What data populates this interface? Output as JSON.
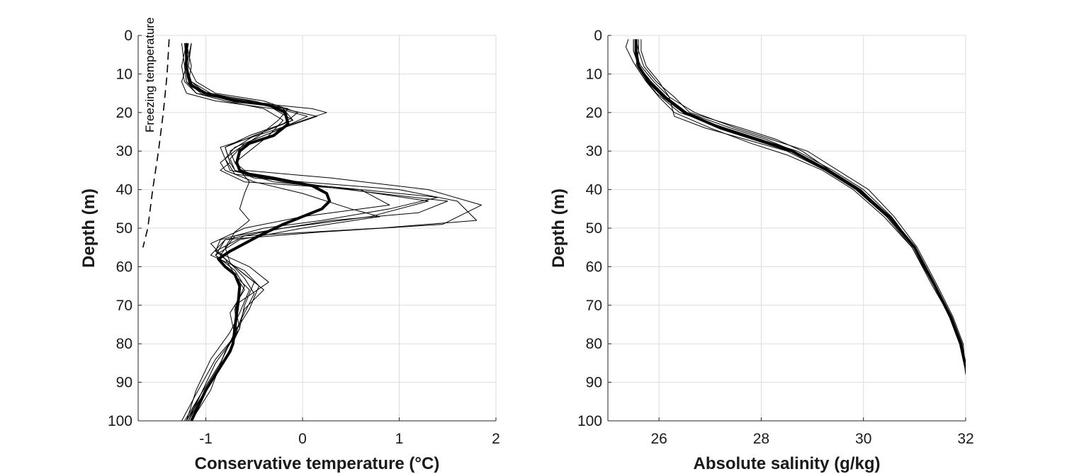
{
  "chart_data": [
    {
      "type": "line",
      "xlabel": "Conservative temperature (°C)",
      "ylabel": "Depth (m)",
      "xlim": [
        -1.7,
        2
      ],
      "ylim": [
        100,
        0
      ],
      "y_reversed": true,
      "xticks": [
        "-1",
        "0",
        "1",
        "2"
      ],
      "yticks": [
        "0",
        "10",
        "20",
        "30",
        "40",
        "50",
        "60",
        "70",
        "80",
        "90",
        "100"
      ],
      "grid": true,
      "annotation": "Freezing temperature",
      "colors": {
        "lines": "#000000",
        "grid": "#dcdcdc",
        "axes": "#262626"
      },
      "freezing_line": {
        "style": "dashed",
        "x": [
          -1.38,
          -1.4,
          -1.44,
          -1.49,
          -1.55,
          -1.6,
          -1.65
        ],
        "y": [
          1,
          10,
          20,
          30,
          40,
          50,
          55
        ]
      },
      "mean": {
        "x": [
          -1.2,
          -1.2,
          -1.18,
          -1.15,
          -1.0,
          -0.7,
          -0.35,
          -0.18,
          -0.15,
          -0.3,
          -0.55,
          -0.65,
          -0.68,
          -0.65,
          -0.55,
          -0.3,
          0.1,
          0.25,
          0.28,
          0.2,
          0.0,
          -0.2,
          -0.45,
          -0.75,
          -0.87,
          -0.8,
          -0.7,
          -0.65,
          -0.66,
          -0.68,
          -0.7,
          -0.72,
          -0.75,
          -0.85,
          -1.0,
          -1.15
        ],
        "y": [
          2,
          8,
          11,
          13,
          15,
          17,
          18,
          20,
          23,
          26,
          28,
          30,
          33,
          35,
          36,
          37,
          39,
          41,
          43,
          45,
          47,
          49,
          52,
          56,
          58,
          60,
          62,
          65,
          68,
          72,
          76,
          80,
          82,
          86,
          92,
          100
        ]
      },
      "profiles": [
        {
          "x": [
            -1.2,
            -1.2,
            -1.15,
            -1.0,
            -0.5,
            -0.2,
            -0.1,
            -0.4,
            -0.8,
            -0.75,
            -0.7,
            -0.5,
            1.0,
            1.6,
            1.8,
            0.8,
            -0.6,
            -0.9,
            -0.7,
            -0.5,
            -0.6,
            -0.65,
            -0.8,
            -1.0,
            -1.2
          ],
          "y": [
            2,
            8,
            12,
            15,
            17,
            19,
            22,
            25,
            29,
            33,
            35,
            37,
            40,
            43,
            48,
            50,
            52,
            56,
            60,
            64,
            70,
            76,
            84,
            92,
            100
          ]
        },
        {
          "x": [
            -1.15,
            -1.18,
            -1.1,
            -0.9,
            -0.4,
            -0.05,
            -0.2,
            -0.5,
            -0.75,
            -0.7,
            -0.6,
            0.3,
            1.3,
            1.85,
            1.45,
            0.2,
            -0.8,
            -0.95,
            -0.6,
            -0.45,
            -0.55,
            -0.7,
            -0.85,
            -1.05,
            -1.18
          ],
          "y": [
            2,
            8,
            12,
            15,
            17,
            20,
            23,
            26,
            30,
            33,
            35,
            37,
            40,
            44,
            49,
            51,
            53,
            57,
            61,
            65,
            71,
            77,
            85,
            93,
            100
          ]
        },
        {
          "x": [
            -1.25,
            -1.22,
            -1.2,
            -1.05,
            -0.6,
            -0.25,
            0.05,
            -0.3,
            -0.7,
            -0.8,
            -0.75,
            -0.2,
            0.8,
            1.5,
            1.2,
            0.3,
            -0.7,
            -0.85,
            -0.65,
            -0.4,
            -0.6,
            -0.7,
            -0.9,
            -1.05,
            -1.22
          ],
          "y": [
            2,
            8,
            12,
            15,
            17,
            19,
            21,
            25,
            29,
            32,
            35,
            38,
            41,
            43,
            46,
            48,
            52,
            57,
            61,
            66,
            71,
            78,
            85,
            93,
            100
          ]
        },
        {
          "x": [
            -1.2,
            -1.25,
            -1.22,
            -1.1,
            -0.7,
            0.1,
            0.25,
            -0.35,
            -0.85,
            -0.8,
            -0.7,
            0.2,
            1.4,
            0.9,
            0.2,
            -0.4,
            -0.85,
            -0.9,
            -0.55,
            -0.35,
            -0.7,
            -0.65,
            -0.8,
            -0.95,
            -1.15
          ],
          "y": [
            2,
            8,
            12,
            15,
            17,
            19,
            20,
            25,
            29,
            32,
            36,
            39,
            42,
            45,
            48,
            50,
            53,
            56,
            60,
            64,
            70,
            76,
            82,
            92,
            100
          ]
        },
        {
          "x": [
            -1.15,
            -1.2,
            -1.25,
            -1.2,
            -0.9,
            -0.3,
            -0.1,
            -0.55,
            -0.8,
            -0.75,
            -0.85,
            -0.6,
            0.6,
            0.9,
            0.0,
            -0.6,
            -0.95,
            -0.8,
            -0.7,
            -0.6,
            -0.75,
            -0.7,
            -0.9,
            -1.1,
            -1.25
          ],
          "y": [
            2,
            8,
            12,
            15,
            17,
            19,
            22,
            26,
            29,
            33,
            35,
            38,
            40,
            44,
            47,
            50,
            54,
            58,
            62,
            66,
            72,
            78,
            84,
            93,
            100
          ]
        },
        {
          "x": [
            -1.2,
            -1.15,
            -1.18,
            -1.0,
            -0.6,
            -0.2,
            0.15,
            -0.2,
            -0.6,
            -0.75,
            -0.7,
            -0.3,
            0.5,
            1.3,
            0.7,
            -0.2,
            -0.8,
            -0.9,
            -0.75,
            -0.55,
            -0.65,
            -0.75,
            -0.95,
            -1.1,
            -1.2
          ],
          "y": [
            2,
            8,
            12,
            15,
            17,
            19,
            21,
            24,
            28,
            32,
            35,
            38,
            40,
            43,
            47,
            50,
            53,
            57,
            61,
            66,
            72,
            77,
            84,
            92,
            100
          ]
        },
        {
          "x": [
            -1.22,
            -1.2,
            -1.15,
            -0.95,
            -0.55,
            -0.15,
            -0.25,
            -0.45,
            -0.7,
            -0.85,
            -0.8,
            -0.5,
            0.0,
            0.5,
            0.8,
            0.0,
            -0.65,
            -0.9,
            -0.7,
            -0.6,
            -0.7,
            -0.68,
            -0.78,
            -1.0,
            -1.18
          ],
          "y": [
            2,
            8,
            12,
            15,
            17,
            19,
            22,
            26,
            30,
            33,
            35,
            38,
            41,
            45,
            47,
            50,
            53,
            57,
            61,
            65,
            71,
            77,
            83,
            92,
            100
          ]
        },
        {
          "x": [
            -1.18,
            -1.22,
            -1.2,
            -1.1,
            -0.8,
            -0.4,
            -0.2,
            -0.35,
            -0.55,
            -0.7,
            -0.65,
            -0.55,
            -0.6,
            -0.65,
            -0.55,
            -0.7,
            -0.8,
            -0.75,
            -0.6,
            -0.5,
            -0.6,
            -0.72,
            -0.85,
            -1.05,
            -1.2
          ],
          "y": [
            2,
            8,
            12,
            15,
            17,
            19,
            22,
            26,
            30,
            33,
            35,
            38,
            41,
            45,
            48,
            51,
            55,
            59,
            63,
            67,
            72,
            78,
            85,
            93,
            100
          ]
        }
      ]
    },
    {
      "type": "line",
      "xlabel": "Absolute salinity (g/kg)",
      "ylabel": "Depth (m)",
      "xlim": [
        25,
        32
      ],
      "ylim": [
        100,
        0
      ],
      "y_reversed": true,
      "xticks": [
        "26",
        "28",
        "30",
        "32"
      ],
      "yticks": [
        "0",
        "10",
        "20",
        "30",
        "40",
        "50",
        "60",
        "70",
        "80",
        "90",
        "100"
      ],
      "grid": true,
      "colors": {
        "lines": "#000000",
        "grid": "#dcdcdc",
        "axes": "#262626"
      },
      "mean": {
        "x": [
          25.55,
          25.55,
          25.6,
          25.8,
          26.1,
          26.5,
          27.2,
          27.9,
          28.6,
          29.3,
          29.9,
          30.5,
          31.0,
          31.4,
          31.7,
          31.9,
          32.0
        ],
        "y": [
          1,
          4,
          8,
          12,
          16,
          20,
          24,
          27,
          30,
          35,
          40,
          47,
          55,
          65,
          73,
          80,
          86
        ]
      },
      "profiles": [
        {
          "x": [
            25.5,
            25.5,
            25.65,
            25.9,
            26.2,
            26.7,
            27.5,
            28.2,
            28.9,
            29.5,
            30.1,
            30.6,
            31.05,
            31.45,
            31.75,
            31.95,
            32.0
          ],
          "y": [
            1,
            4,
            8,
            12,
            16,
            20,
            24,
            27,
            30,
            35,
            40,
            47,
            55,
            65,
            73,
            80,
            87
          ]
        },
        {
          "x": [
            25.6,
            25.6,
            25.55,
            25.75,
            26.0,
            26.3,
            27.0,
            27.8,
            28.5,
            29.2,
            29.8,
            30.4,
            30.95,
            31.35,
            31.7,
            31.9,
            31.98
          ],
          "y": [
            1,
            4,
            8,
            12,
            16,
            20,
            24,
            28,
            31,
            35,
            40,
            47,
            55,
            65,
            73,
            80,
            86
          ]
        },
        {
          "x": [
            25.4,
            25.35,
            25.5,
            25.7,
            25.95,
            26.4,
            27.3,
            28.0,
            28.7,
            29.4,
            30.0,
            30.55,
            31.0,
            31.42,
            31.72,
            31.92,
            32.02
          ],
          "y": [
            1,
            3,
            7,
            11,
            15,
            20,
            24,
            27,
            30,
            35,
            40,
            47,
            55,
            65,
            73,
            80,
            89
          ]
        },
        {
          "x": [
            25.55,
            25.6,
            25.7,
            25.95,
            26.3,
            26.6,
            27.6,
            28.3,
            28.8,
            29.35,
            29.95,
            30.5,
            31.0,
            31.4,
            31.7,
            31.9,
            32.0
          ],
          "y": [
            1,
            4,
            8,
            12,
            16,
            20,
            24,
            27,
            30,
            35,
            40,
            47,
            55,
            65,
            73,
            80,
            85
          ]
        },
        {
          "x": [
            25.65,
            25.65,
            25.75,
            26.0,
            26.2,
            26.3,
            26.9,
            27.7,
            28.5,
            29.25,
            29.85,
            30.45,
            30.95,
            31.38,
            31.7,
            31.9,
            32.0
          ],
          "y": [
            1,
            4,
            8,
            12,
            16,
            21,
            24,
            27,
            30,
            35,
            40,
            47,
            55,
            65,
            73,
            80,
            86
          ]
        },
        {
          "x": [
            25.5,
            25.5,
            25.6,
            25.85,
            26.15,
            26.55,
            27.4,
            28.1,
            28.65,
            29.3,
            29.9,
            30.5,
            31.02,
            31.42,
            31.73,
            31.93,
            32.0
          ],
          "y": [
            1,
            4,
            8,
            12,
            16,
            20,
            24,
            27,
            30,
            35,
            40,
            47,
            55,
            65,
            73,
            80,
            88
          ]
        }
      ]
    }
  ]
}
